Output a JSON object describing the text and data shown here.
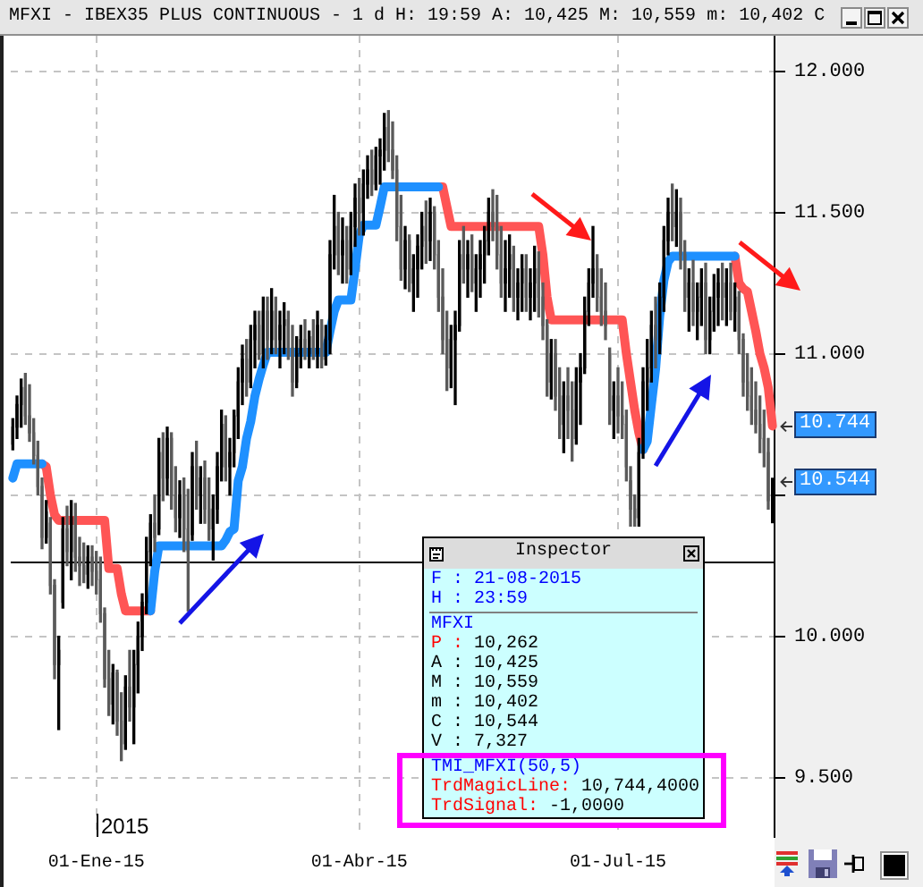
{
  "chart_data": {
    "type": "candlestick",
    "title": "MFXI - IBEX35 PLUS CONTINUOUS - 1 d H: 19:59 A: 10,425 M: 10,559 m: 10,402 C",
    "categories": [
      null,
      null,
      null,
      null,
      null,
      null,
      null,
      null,
      null,
      null,
      null,
      null,
      null,
      null,
      null,
      null,
      null,
      null,
      null,
      null,
      "01-Ene-15",
      null,
      null,
      null,
      null,
      null,
      null,
      null,
      null,
      null,
      null,
      null,
      null,
      null,
      null,
      null,
      null,
      null,
      null,
      null,
      null,
      null,
      null,
      null,
      null,
      null,
      null,
      null,
      null,
      null,
      null,
      null,
      null,
      null,
      null,
      null,
      null,
      null,
      null,
      null,
      null,
      null,
      null,
      null,
      null,
      null,
      null,
      null,
      null,
      null,
      null,
      null,
      null,
      null,
      null,
      null,
      null,
      null,
      null,
      null,
      null,
      null,
      null,
      "01-Abr-15",
      null,
      null,
      null,
      null,
      null,
      null,
      null,
      null,
      null,
      null,
      null,
      null,
      null,
      null,
      null,
      null,
      null,
      null,
      null,
      null,
      null,
      null,
      null,
      null,
      null,
      null,
      null,
      null,
      null,
      null,
      null,
      null,
      null,
      null,
      null,
      null,
      null,
      null,
      null,
      null,
      null,
      null,
      null,
      null,
      null,
      null,
      null,
      null,
      null,
      null,
      null,
      null,
      null,
      null,
      null,
      null,
      null,
      null,
      null,
      null,
      null,
      "01-Jul-15",
      null,
      null,
      null,
      null,
      null,
      null,
      null,
      null,
      null,
      null,
      null,
      null,
      null,
      null,
      null,
      null,
      null,
      null,
      null,
      null,
      null,
      null,
      null,
      null,
      null,
      null,
      null,
      null,
      null,
      null,
      null,
      null,
      null,
      null,
      null,
      null,
      null
    ],
    "ohlc": [
      [
        10.68,
        10.77,
        10.66,
        10.74
      ],
      [
        10.74,
        10.85,
        10.7,
        10.82
      ],
      [
        10.82,
        10.91,
        10.74,
        10.88
      ],
      [
        10.88,
        10.93,
        10.75,
        10.78
      ],
      [
        10.78,
        10.89,
        10.69,
        10.72
      ],
      [
        10.72,
        10.77,
        10.61,
        10.64
      ],
      [
        10.64,
        10.69,
        10.5,
        10.53
      ],
      [
        10.53,
        10.56,
        10.31,
        10.35
      ],
      [
        10.35,
        10.48,
        10.33,
        10.44
      ],
      [
        10.4,
        10.42,
        10.15,
        10.18
      ],
      [
        10.18,
        10.2,
        9.85,
        9.9
      ],
      [
        9.9,
        10,
        9.67,
        9.95
      ],
      [
        10.12,
        10.42,
        10.1,
        10.38
      ],
      [
        10.38,
        10.46,
        10.25,
        10.3
      ],
      [
        10.3,
        10.48,
        10.2,
        10.42
      ],
      [
        10.42,
        10.47,
        10.23,
        10.28
      ],
      [
        10.28,
        10.35,
        10.18,
        10.25
      ],
      [
        10.25,
        10.33,
        10.19,
        10.22
      ],
      [
        10.22,
        10.32,
        10.17,
        10.28
      ],
      [
        10.28,
        10.32,
        10.18,
        10.23
      ],
      [
        10.23,
        10.3,
        10.15,
        10.2
      ],
      [
        10.2,
        10.28,
        10.05,
        10.08
      ],
      [
        10.08,
        10.1,
        9.82,
        9.85
      ],
      [
        9.85,
        9.95,
        9.72,
        9.76
      ],
      [
        9.76,
        9.9,
        9.69,
        9.87
      ],
      [
        9.87,
        9.88,
        9.65,
        9.7
      ],
      [
        9.7,
        9.8,
        9.56,
        9.62
      ],
      [
        9.62,
        9.86,
        9.6,
        9.82
      ],
      [
        9.82,
        9.95,
        9.7,
        9.75
      ],
      [
        9.75,
        9.95,
        9.62,
        9.9
      ],
      [
        9.9,
        10.05,
        9.8,
        10
      ],
      [
        10,
        10.15,
        9.95,
        10.12
      ],
      [
        10.12,
        10.35,
        10.08,
        10.3
      ],
      [
        10.3,
        10.43,
        10.25,
        10.4
      ],
      [
        10.4,
        10.5,
        10.3,
        10.35
      ],
      [
        10.38,
        10.7,
        10.36,
        10.65
      ],
      [
        10.65,
        10.72,
        10.48,
        10.56
      ],
      [
        10.56,
        10.74,
        10.5,
        10.7
      ],
      [
        10.7,
        10.72,
        10.45,
        10.5
      ],
      [
        10.5,
        10.6,
        10.37,
        10.42
      ],
      [
        10.42,
        10.55,
        10.35,
        10.5
      ],
      [
        10.5,
        10.56,
        10.3,
        10.38
      ],
      [
        10.38,
        10.52,
        10.09,
        10.3
      ],
      [
        10.36,
        10.65,
        10.34,
        10.6
      ],
      [
        10.6,
        10.69,
        10.45,
        10.5
      ],
      [
        10.5,
        10.6,
        10.4,
        10.56
      ],
      [
        10.56,
        10.62,
        10.4,
        10.45
      ],
      [
        10.45,
        10.56,
        10.34,
        10.38
      ],
      [
        10.38,
        10.5,
        10.27,
        10.45
      ],
      [
        10.45,
        10.65,
        10.4,
        10.6
      ],
      [
        10.6,
        10.8,
        10.55,
        10.75
      ],
      [
        10.75,
        10.78,
        10.55,
        10.6
      ],
      [
        10.6,
        10.7,
        10.5,
        10.65
      ],
      [
        10.65,
        10.8,
        10.6,
        10.78
      ],
      [
        10.78,
        10.95,
        10.7,
        10.9
      ],
      [
        10.9,
        11.03,
        10.82,
        10.98
      ],
      [
        10.98,
        11.05,
        10.85,
        10.9
      ],
      [
        10.9,
        11.1,
        10.88,
        11.05
      ],
      [
        11.05,
        11.15,
        10.95,
        11.1
      ],
      [
        11.1,
        11.15,
        10.98,
        11
      ],
      [
        11,
        11.2,
        10.95,
        11.15
      ],
      [
        11.15,
        11.2,
        10.98,
        11.05
      ],
      [
        11.05,
        11.23,
        11,
        11.15
      ],
      [
        11.15,
        11.2,
        11,
        11.05
      ],
      [
        11.05,
        11.15,
        10.95,
        11.1
      ],
      [
        11.1,
        11.18,
        11,
        11.12
      ],
      [
        11.12,
        11.15,
        10.98,
        11.02
      ],
      [
        11.02,
        11.1,
        10.85,
        10.9
      ],
      [
        10.9,
        11.06,
        10.88,
        11
      ],
      [
        11,
        11.1,
        10.95,
        11.05
      ],
      [
        11.05,
        11.12,
        10.98,
        11
      ],
      [
        11,
        11.08,
        10.95,
        11.06
      ],
      [
        11.06,
        11.12,
        10.98,
        11
      ],
      [
        11,
        11.15,
        10.95,
        11.1
      ],
      [
        11.1,
        11.12,
        10.95,
        10.98
      ],
      [
        10.98,
        11.1,
        10.96,
        11.05
      ],
      [
        11.05,
        11.4,
        11,
        11.35
      ],
      [
        11.35,
        11.56,
        11.3,
        11.45
      ],
      [
        11.45,
        11.5,
        11.28,
        11.35
      ],
      [
        11.35,
        11.48,
        11.25,
        11.4
      ],
      [
        11.4,
        11.45,
        11.25,
        11.3
      ],
      [
        11.3,
        11.5,
        11.28,
        11.45
      ],
      [
        11.45,
        11.6,
        11.38,
        11.55
      ],
      [
        11.55,
        11.62,
        11.42,
        11.5
      ],
      [
        11.5,
        11.65,
        11.42,
        11.6
      ],
      [
        11.6,
        11.7,
        11.55,
        11.65
      ],
      [
        11.65,
        11.72,
        11.56,
        11.6
      ],
      [
        11.6,
        11.73,
        11.58,
        11.7
      ],
      [
        11.7,
        11.76,
        11.6,
        11.72
      ],
      [
        11.72,
        11.85,
        11.65,
        11.8
      ],
      [
        11.8,
        11.86,
        11.68,
        11.72
      ],
      [
        11.72,
        11.82,
        11.62,
        11.65
      ],
      [
        11.65,
        11.7,
        11.4,
        11.45
      ],
      [
        11.45,
        11.56,
        11.26,
        11.3
      ],
      [
        11.3,
        11.45,
        11.23,
        11.4
      ],
      [
        11.4,
        11.42,
        11.22,
        11.25
      ],
      [
        11.25,
        11.35,
        11.15,
        11.3
      ],
      [
        11.3,
        11.42,
        11.2,
        11.38
      ],
      [
        11.38,
        11.5,
        11.3,
        11.45
      ],
      [
        11.45,
        11.54,
        11.32,
        11.4
      ],
      [
        11.4,
        11.55,
        11.33,
        11.5
      ],
      [
        11.5,
        11.52,
        11.3,
        11.35
      ],
      [
        11.35,
        11.4,
        11.15,
        11.2
      ],
      [
        11.2,
        11.3,
        11,
        11.05
      ],
      [
        11.05,
        11.15,
        10.87,
        10.95
      ],
      [
        10.95,
        11.1,
        10.88,
        11.05
      ],
      [
        11.05,
        11.15,
        10.82,
        11.1
      ],
      [
        11.1,
        11.4,
        11.08,
        11.35
      ],
      [
        11.35,
        11.45,
        11.25,
        11.3
      ],
      [
        11.3,
        11.4,
        11.2,
        11.35
      ],
      [
        11.35,
        11.42,
        11.22,
        11.25
      ],
      [
        11.25,
        11.35,
        11.15,
        11.3
      ],
      [
        11.3,
        11.4,
        11.2,
        11.35
      ],
      [
        11.35,
        11.45,
        11.25,
        11.4
      ],
      [
        11.4,
        11.55,
        11.35,
        11.5
      ],
      [
        11.5,
        11.58,
        11.4,
        11.45
      ],
      [
        11.45,
        11.56,
        11.3,
        11.35
      ],
      [
        11.35,
        11.45,
        11.2,
        11.25
      ],
      [
        11.25,
        11.4,
        11.15,
        11.3
      ],
      [
        11.3,
        11.42,
        11.2,
        11.35
      ],
      [
        11.35,
        11.38,
        11.15,
        11.2
      ],
      [
        11.2,
        11.3,
        11.12,
        11.25
      ],
      [
        11.25,
        11.35,
        11.15,
        11.3
      ],
      [
        11.3,
        11.35,
        11.15,
        11.2
      ],
      [
        11.2,
        11.3,
        11.12,
        11.25
      ],
      [
        11.25,
        11.38,
        11.15,
        11.3
      ],
      [
        11.3,
        11.36,
        11.13,
        11.2
      ],
      [
        11.2,
        11.25,
        11.05,
        11.1
      ],
      [
        11.1,
        11.12,
        10.85,
        10.9
      ],
      [
        10.9,
        11.05,
        10.84,
        11
      ],
      [
        11,
        11.05,
        10.8,
        10.85
      ],
      [
        10.85,
        10.95,
        10.7,
        10.75
      ],
      [
        10.75,
        10.9,
        10.65,
        10.85
      ],
      [
        10.85,
        10.95,
        10.7,
        10.8
      ],
      [
        10.8,
        10.9,
        10.62,
        10.7
      ],
      [
        10.7,
        10.95,
        10.68,
        10.9
      ],
      [
        10.9,
        11,
        10.75,
        10.95
      ],
      [
        10.95,
        11.2,
        10.93,
        11.15
      ],
      [
        11.15,
        11.3,
        11.1,
        11.25
      ],
      [
        11.25,
        11.45,
        11.2,
        11.3
      ],
      [
        11.3,
        11.35,
        11.15,
        11.2
      ],
      [
        11.2,
        11.3,
        11.1,
        11.15
      ],
      [
        11.15,
        11.25,
        11.05,
        11.1
      ],
      [
        11,
        11.02,
        10.75,
        10.8
      ],
      [
        10.8,
        10.9,
        10.7,
        10.85
      ],
      [
        10.85,
        10.95,
        10.72,
        10.78
      ],
      [
        10.78,
        10.9,
        10.7,
        10.75
      ],
      [
        10.75,
        10.8,
        10.55,
        10.6
      ],
      [
        10.55,
        10.6,
        10.39,
        10.45
      ],
      [
        10.45,
        10.5,
        10.39,
        10.42
      ],
      [
        10.42,
        10.7,
        10.39,
        10.65
      ],
      [
        10.65,
        10.95,
        10.63,
        10.9
      ],
      [
        10.9,
        11.05,
        10.8,
        10.95
      ],
      [
        10.95,
        11.15,
        10.9,
        11.1
      ],
      [
        11.1,
        11.2,
        10.95,
        11.05
      ],
      [
        11.05,
        11.25,
        11,
        11.2
      ],
      [
        11.2,
        11.45,
        11.15,
        11.4
      ],
      [
        11.4,
        11.55,
        11.35,
        11.5
      ],
      [
        11.5,
        11.6,
        11.4,
        11.45
      ],
      [
        11.45,
        11.58,
        11.38,
        11.5
      ],
      [
        11.5,
        11.55,
        11.3,
        11.35
      ],
      [
        11.35,
        11.4,
        11.15,
        11.2
      ],
      [
        11.2,
        11.3,
        11.08,
        11.25
      ],
      [
        11.25,
        11.33,
        11.1,
        11.15
      ],
      [
        11.15,
        11.25,
        11.05,
        11.2
      ],
      [
        11.2,
        11.3,
        11.1,
        11.25
      ],
      [
        11.25,
        11.32,
        11,
        11.05
      ],
      [
        11.05,
        11.2,
        11,
        11.15
      ],
      [
        11.15,
        11.28,
        11.08,
        11.2
      ],
      [
        11.2,
        11.3,
        11.1,
        11.25
      ],
      [
        11.25,
        11.32,
        11.12,
        11.2
      ],
      [
        11.2,
        11.3,
        11.1,
        11.25
      ],
      [
        11.25,
        11.32,
        11.12,
        11.15
      ],
      [
        11.15,
        11.25,
        11.08,
        11.2
      ],
      [
        11.2,
        11.22,
        11,
        11.05
      ],
      [
        11.05,
        11.07,
        10.85,
        10.9
      ],
      [
        10.9,
        11,
        10.8,
        10.85
      ],
      [
        10.85,
        10.95,
        10.75,
        10.8
      ],
      [
        10.8,
        10.9,
        10.72,
        10.75
      ],
      [
        10.75,
        10.85,
        10.65,
        10.7
      ],
      [
        10.7,
        10.8,
        10.6,
        10.65
      ],
      [
        10.65,
        10.7,
        10.45,
        10.48
      ],
      [
        10.425,
        10.559,
        10.402,
        10.544
      ]
    ],
    "series": [
      {
        "type": "line",
        "color": "#1e90ff",
        "values": [
          10.56,
          10.61,
          10.61,
          10.61,
          10.61,
          10.61,
          10.61,
          10.61,
          null,
          null,
          null,
          null,
          null,
          null,
          null,
          null,
          null,
          null,
          null,
          null,
          null,
          null,
          null,
          null,
          null,
          null,
          null,
          null,
          null,
          null,
          null,
          null,
          null,
          10.09,
          10.23,
          10.32,
          10.32,
          10.32,
          10.32,
          10.32,
          10.32,
          10.32,
          10.32,
          10.32,
          10.32,
          10.32,
          10.32,
          10.32,
          10.32,
          10.32,
          10.32,
          10.34,
          10.37,
          10.38,
          10.55,
          10.6,
          10.7,
          10.76,
          10.85,
          10.91,
          10.96,
          11.005,
          11.005,
          11.005,
          11.005,
          11.005,
          11.005,
          11.005,
          11.005,
          11.005,
          11.005,
          11.005,
          11.005,
          11.005,
          11.005,
          11.005,
          11.08,
          11.15,
          11.19,
          11.19,
          11.19,
          11.19,
          11.3,
          11.42,
          11.455,
          11.455,
          11.455,
          11.455,
          11.52,
          11.59,
          11.59,
          11.59,
          11.59,
          11.59,
          11.59,
          11.59,
          11.59,
          11.59,
          11.59,
          11.59,
          11.59,
          11.59,
          11.59,
          null,
          null,
          null,
          null,
          null,
          null,
          null,
          null,
          null,
          null,
          null,
          null,
          null,
          null,
          null,
          null,
          null,
          null,
          null,
          null,
          null,
          null,
          null,
          null,
          null,
          null,
          null,
          null,
          null,
          null,
          null,
          null,
          null,
          null,
          null,
          null,
          null,
          null,
          null,
          null,
          null,
          null,
          null,
          null,
          null,
          null,
          null,
          null,
          10.66,
          10.69,
          10.82,
          10.945,
          11.135,
          11.26,
          11.325,
          11.345,
          11.345,
          11.345,
          11.345,
          11.345,
          11.345,
          11.345,
          11.345,
          11.345,
          11.345,
          11.345,
          11.345,
          11.345,
          11.345,
          11.345,
          11.345,
          null,
          null,
          null,
          null,
          null,
          null,
          null,
          null,
          null
        ]
      },
      {
        "type": "line",
        "color": "#ff5555",
        "values": [
          null,
          null,
          null,
          null,
          null,
          null,
          null,
          10.61,
          10.6,
          10.5,
          10.43,
          10.41,
          10.41,
          10.41,
          10.41,
          10.41,
          10.41,
          10.41,
          10.41,
          10.41,
          10.41,
          10.41,
          10.41,
          10.24,
          10.24,
          10.24,
          10.15,
          10.09,
          10.09,
          10.09,
          10.09,
          10.09,
          10.09,
          10.09,
          null,
          null,
          null,
          null,
          null,
          null,
          null,
          null,
          null,
          null,
          null,
          null,
          null,
          null,
          null,
          null,
          null,
          null,
          null,
          null,
          null,
          null,
          null,
          null,
          null,
          null,
          null,
          null,
          null,
          null,
          null,
          null,
          null,
          null,
          null,
          null,
          null,
          null,
          null,
          null,
          null,
          null,
          null,
          null,
          null,
          null,
          null,
          null,
          null,
          null,
          null,
          null,
          null,
          null,
          null,
          null,
          null,
          null,
          null,
          null,
          null,
          null,
          null,
          null,
          null,
          null,
          null,
          null,
          11.59,
          11.59,
          11.52,
          11.45,
          11.45,
          11.45,
          11.45,
          11.45,
          11.45,
          11.45,
          11.45,
          11.45,
          11.45,
          11.45,
          11.45,
          11.45,
          11.45,
          11.45,
          11.45,
          11.45,
          11.45,
          11.45,
          11.45,
          11.45,
          11.45,
          11.35,
          11.2,
          11.12,
          11.12,
          11.12,
          11.12,
          11.12,
          11.12,
          11.12,
          11.12,
          11.12,
          11.12,
          11.12,
          11.12,
          11.12,
          11.12,
          11.12,
          11.12,
          11.12,
          11.12,
          11,
          10.9,
          10.8,
          10.72,
          10.66,
          null,
          null,
          null,
          null,
          null,
          null,
          null,
          null,
          null,
          null,
          null,
          null,
          null,
          null,
          null,
          null,
          null,
          null,
          null,
          null,
          null,
          11.345,
          11.25,
          11.23,
          11.22,
          11.15,
          11.08,
          11,
          10.95,
          10.88,
          10.744
        ]
      }
    ],
    "ylim": [
      9.29,
      12.125
    ],
    "yticks": [
      {
        "value": 9.5,
        "label": "9.500"
      },
      {
        "value": 10,
        "label": "10.000"
      },
      {
        "value": 10.5,
        "label": null
      },
      {
        "value": 11,
        "label": "11.000"
      },
      {
        "value": 11.5,
        "label": "11.500"
      },
      {
        "value": 12,
        "label": "12.000"
      }
    ],
    "grid": true,
    "ref_lines": [
      {
        "axis": "y",
        "value": 10.262,
        "color": "#000000"
      }
    ],
    "annotations": [
      "2015",
      "10.744",
      "10.544",
      "Inspector",
      "F : 21-08-2015",
      "H : 23:59",
      "MFXI",
      "P : 10,262",
      "A : 10,425",
      "M : 10,559",
      "m : 10,402",
      "C : 10,544",
      "V : 7,327",
      "TMI_MFXI(50,5)",
      "TrdMagicLine: 10,744,4000",
      "TrdSignal: -1,0000"
    ]
  }
}
